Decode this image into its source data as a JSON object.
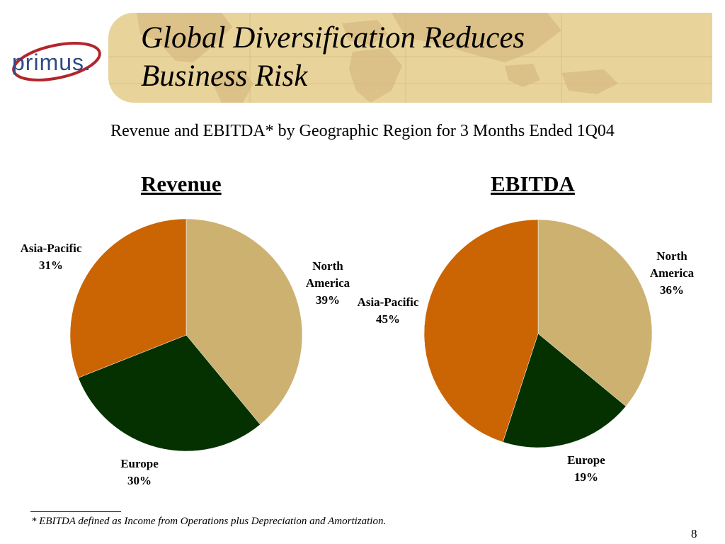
{
  "brand": {
    "logo_text": "primus.",
    "colors": {
      "banner": "#e8d39a",
      "map": "#d3b77b",
      "logo_blue": "#2f4a86",
      "logo_red": "#b4252b"
    }
  },
  "header": {
    "title_line1": "Global Diversification Reduces",
    "title_line2": "Business Risk"
  },
  "subtitle": "Revenue and EBITDA* by Geographic Region for 3 Months Ended 1Q04",
  "chart_data": [
    {
      "type": "pie",
      "title": "Revenue",
      "slices": [
        {
          "label": "North America",
          "label_lines": [
            "North",
            "America"
          ],
          "value": 39,
          "display": "39%",
          "color": "#cdb170"
        },
        {
          "label": "Europe",
          "label_lines": [
            "Europe"
          ],
          "value": 30,
          "display": "30%",
          "color": "#053100"
        },
        {
          "label": "Asia-Pacific",
          "label_lines": [
            "Asia-Pacific"
          ],
          "value": 31,
          "display": "31%",
          "color": "#cb6403"
        }
      ]
    },
    {
      "type": "pie",
      "title": "EBITDA",
      "slices": [
        {
          "label": "North America",
          "label_lines": [
            "North",
            "America"
          ],
          "value": 36,
          "display": "36%",
          "color": "#cdb170"
        },
        {
          "label": "Europe",
          "label_lines": [
            "Europe"
          ],
          "value": 19,
          "display": "19%",
          "color": "#053100"
        },
        {
          "label": "Asia-Pacific",
          "label_lines": [
            "Asia-Pacific"
          ],
          "value": 45,
          "display": "45%",
          "color": "#cb6403"
        }
      ]
    }
  ],
  "footnote": "*  EBITDA defined as Income from Operations plus Depreciation and Amortization.",
  "page_number": "8"
}
